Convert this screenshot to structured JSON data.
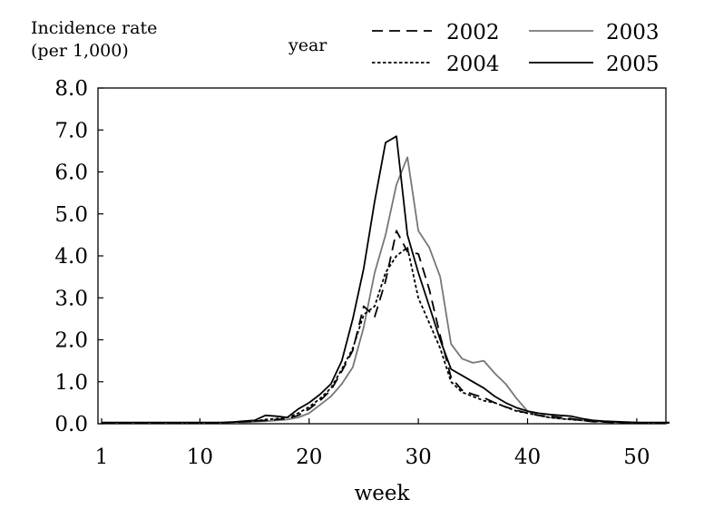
{
  "chart_data": {
    "type": "line",
    "title": "",
    "ylabel_line1": "Incidence rate",
    "ylabel_line2": "(per 1,000)",
    "xlabel": "week",
    "legend_title": "year",
    "legend_position": "top-right",
    "xlim": [
      1,
      53
    ],
    "ylim": [
      0,
      8
    ],
    "grid": false,
    "xticks": [
      {
        "value": 1,
        "label": "1"
      },
      {
        "value": 10,
        "label": "10"
      },
      {
        "value": 20,
        "label": "20"
      },
      {
        "value": 30,
        "label": "30"
      },
      {
        "value": 40,
        "label": "40"
      },
      {
        "value": 50,
        "label": "50"
      }
    ],
    "yticks": [
      {
        "value": 0,
        "label": "0.0"
      },
      {
        "value": 1,
        "label": "1.0"
      },
      {
        "value": 2,
        "label": "2.0"
      },
      {
        "value": 3,
        "label": "3.0"
      },
      {
        "value": 4,
        "label": "4.0"
      },
      {
        "value": 5,
        "label": "5.0"
      },
      {
        "value": 6,
        "label": "6.0"
      },
      {
        "value": 7,
        "label": "7.0"
      },
      {
        "value": 8,
        "label": "8.0"
      }
    ],
    "series": [
      {
        "name": "2002",
        "color": "#000000",
        "style": "long-dash",
        "x": [
          1,
          2,
          3,
          4,
          5,
          6,
          7,
          8,
          9,
          10,
          11,
          12,
          13,
          14,
          15,
          16,
          17,
          18,
          19,
          20,
          21,
          22,
          23,
          24,
          25,
          26,
          27,
          28,
          29,
          30,
          31,
          32,
          33,
          34,
          35,
          36,
          37,
          38,
          39,
          40,
          41,
          42,
          43,
          44,
          45,
          46,
          47,
          48,
          49,
          50,
          51,
          52,
          53
        ],
        "y": [
          0.02,
          0.02,
          0.02,
          0.02,
          0.02,
          0.02,
          0.02,
          0.02,
          0.02,
          0.02,
          0.02,
          0.02,
          0.03,
          0.05,
          0.06,
          0.08,
          0.1,
          0.12,
          0.2,
          0.35,
          0.55,
          0.8,
          1.25,
          1.75,
          2.8,
          2.55,
          3.4,
          4.6,
          4.1,
          4.05,
          3.2,
          2.1,
          1.1,
          0.8,
          0.7,
          0.62,
          0.5,
          0.4,
          0.32,
          0.25,
          0.2,
          0.18,
          0.15,
          0.12,
          0.08,
          0.05,
          0.04,
          0.03,
          0.02,
          0.02,
          0.02,
          0.02,
          0.02
        ]
      },
      {
        "name": "2003",
        "color": "#777777",
        "style": "solid",
        "x": [
          1,
          2,
          3,
          4,
          5,
          6,
          7,
          8,
          9,
          10,
          11,
          12,
          13,
          14,
          15,
          16,
          17,
          18,
          19,
          20,
          21,
          22,
          23,
          24,
          25,
          26,
          27,
          28,
          29,
          30,
          31,
          32,
          33,
          34,
          35,
          36,
          37,
          38,
          39,
          40,
          41,
          42,
          43,
          44,
          45,
          46,
          47,
          48,
          49,
          50,
          51,
          52,
          53
        ],
        "y": [
          0.02,
          0.02,
          0.02,
          0.02,
          0.02,
          0.02,
          0.02,
          0.02,
          0.02,
          0.02,
          0.02,
          0.02,
          0.02,
          0.03,
          0.05,
          0.06,
          0.08,
          0.1,
          0.15,
          0.25,
          0.45,
          0.65,
          0.95,
          1.35,
          2.3,
          3.6,
          4.5,
          5.7,
          6.35,
          4.6,
          4.2,
          3.5,
          1.9,
          1.55,
          1.45,
          1.5,
          1.2,
          0.95,
          0.6,
          0.3,
          0.2,
          0.15,
          0.12,
          0.1,
          0.08,
          0.06,
          0.05,
          0.04,
          0.03,
          0.03,
          0.02,
          0.02,
          0.02
        ]
      },
      {
        "name": "2004",
        "color": "#000000",
        "style": "short-dash",
        "x": [
          1,
          2,
          3,
          4,
          5,
          6,
          7,
          8,
          9,
          10,
          11,
          12,
          13,
          14,
          15,
          16,
          17,
          18,
          19,
          20,
          21,
          22,
          23,
          24,
          25,
          26,
          27,
          28,
          29,
          30,
          31,
          32,
          33,
          34,
          35,
          36,
          37,
          38,
          39,
          40,
          41,
          42,
          43,
          44,
          45,
          46,
          47,
          48,
          49,
          50,
          51,
          52,
          53
        ],
        "y": [
          0.02,
          0.02,
          0.02,
          0.02,
          0.02,
          0.02,
          0.02,
          0.02,
          0.02,
          0.02,
          0.02,
          0.02,
          0.03,
          0.05,
          0.06,
          0.1,
          0.12,
          0.15,
          0.25,
          0.4,
          0.6,
          0.85,
          1.3,
          1.8,
          2.6,
          2.8,
          3.6,
          4.0,
          4.2,
          3.0,
          2.4,
          1.8,
          1.0,
          0.75,
          0.65,
          0.55,
          0.5,
          0.4,
          0.3,
          0.25,
          0.2,
          0.15,
          0.12,
          0.1,
          0.08,
          0.06,
          0.05,
          0.04,
          0.03,
          0.02,
          0.02,
          0.02,
          0.02
        ]
      },
      {
        "name": "2005",
        "color": "#000000",
        "style": "solid",
        "x": [
          1,
          2,
          3,
          4,
          5,
          6,
          7,
          8,
          9,
          10,
          11,
          12,
          13,
          14,
          15,
          16,
          17,
          18,
          19,
          20,
          21,
          22,
          23,
          24,
          25,
          26,
          27,
          28,
          29,
          30,
          31,
          32,
          33,
          34,
          35,
          36,
          37,
          38,
          39,
          40,
          41,
          42,
          43,
          44,
          45,
          46,
          47,
          48,
          49,
          50,
          51,
          52,
          53
        ],
        "y": [
          0.03,
          0.03,
          0.03,
          0.03,
          0.03,
          0.03,
          0.03,
          0.03,
          0.03,
          0.03,
          0.03,
          0.03,
          0.04,
          0.06,
          0.08,
          0.2,
          0.18,
          0.15,
          0.35,
          0.5,
          0.7,
          0.95,
          1.5,
          2.5,
          3.7,
          5.3,
          6.7,
          6.85,
          4.5,
          3.6,
          2.8,
          2.0,
          1.3,
          1.15,
          1.0,
          0.85,
          0.65,
          0.5,
          0.38,
          0.3,
          0.25,
          0.22,
          0.2,
          0.18,
          0.12,
          0.08,
          0.06,
          0.05,
          0.04,
          0.03,
          0.03,
          0.03,
          0.03
        ]
      }
    ]
  }
}
